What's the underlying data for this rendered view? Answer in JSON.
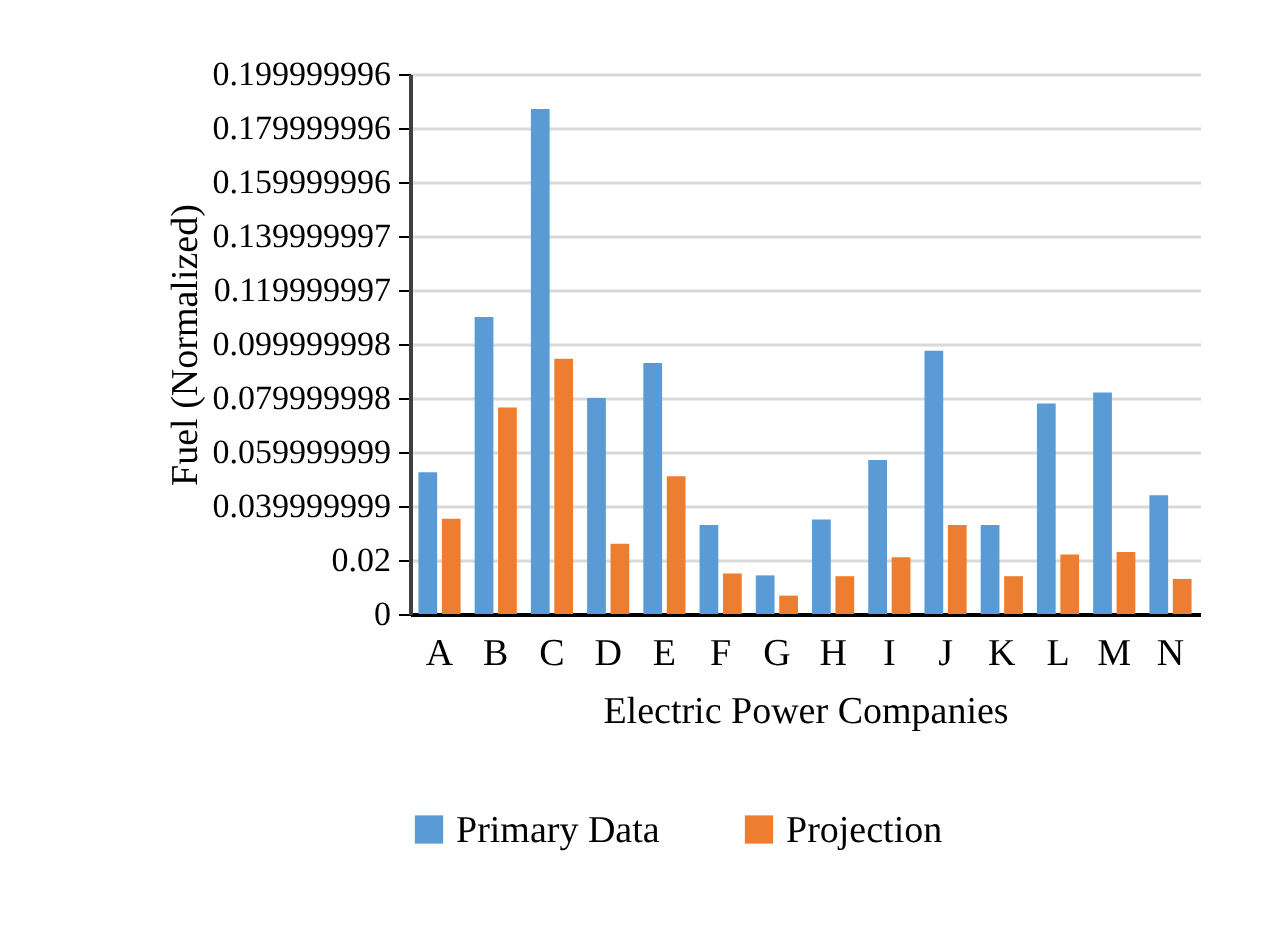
{
  "chart_data": {
    "type": "bar",
    "xlabel": "Electric Power Companies",
    "ylabel": "Fuel (Normalized)",
    "categories": [
      "A",
      "B",
      "C",
      "D",
      "E",
      "F",
      "G",
      "H",
      "I",
      "J",
      "K",
      "L",
      "M",
      "N"
    ],
    "series": [
      {
        "name": "Primary Data",
        "color": "#5b9bd5",
        "values": [
          0.0525,
          0.11,
          0.187,
          0.08,
          0.093,
          0.033,
          0.0143,
          0.035,
          0.057,
          0.0975,
          0.033,
          0.078,
          0.082,
          0.044
        ]
      },
      {
        "name": "Projection",
        "color": "#ed7d31",
        "values": [
          0.0353,
          0.0765,
          0.0945,
          0.026,
          0.051,
          0.015,
          0.0068,
          0.014,
          0.021,
          0.033,
          0.014,
          0.022,
          0.023,
          0.013
        ]
      }
    ],
    "ylim": [
      0,
      0.199999996
    ],
    "yticks": [
      0,
      0.02,
      0.039999999,
      0.059999999,
      0.079999998,
      0.099999998,
      0.119999997,
      0.139999997,
      0.159999996,
      0.179999996,
      0.199999996
    ],
    "grid": "y",
    "legend": "bottom"
  }
}
